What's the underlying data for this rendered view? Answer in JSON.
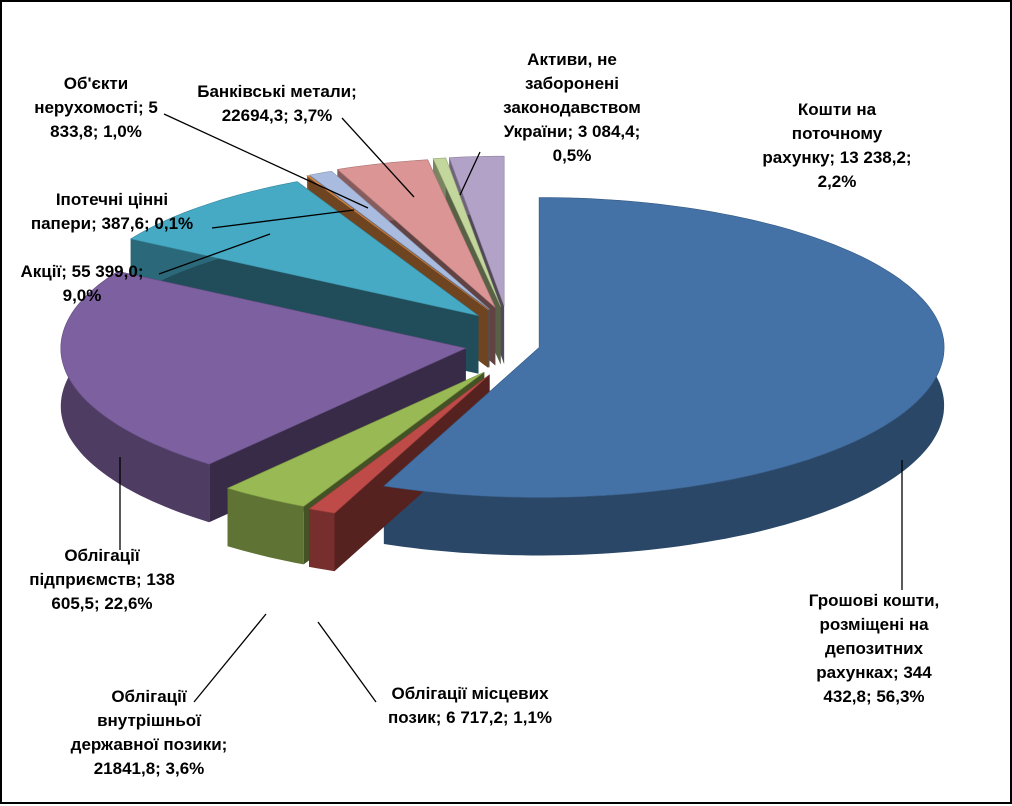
{
  "chart_data": {
    "type": "pie",
    "title": "",
    "grid": false,
    "slices": [
      {
        "name": "Грошові кошти, розміщені на депозитних рахунках",
        "value": 344432.8,
        "percent": 56.3,
        "color": "#4472A6",
        "label": [
          "Грошові кошти,",
          "розміщені на",
          "депозитних",
          "рахунках; 344",
          "432,8; 56,3%"
        ]
      },
      {
        "name": "Облігації місцевих позик",
        "value": 6717.2,
        "percent": 1.1,
        "color": "#BE4B48",
        "label": [
          "Облігації місцевих",
          "позик; 6 717,2; 1,1%"
        ]
      },
      {
        "name": "Облігації внутрішньої державної позики",
        "value": 21841.8,
        "percent": 3.6,
        "color": "#98B954",
        "label": [
          "Облігації",
          "внутрішньої",
          "державної позики;",
          "21841,8; 3,6%"
        ]
      },
      {
        "name": "Облігації підприємств",
        "value": 138605.5,
        "percent": 22.6,
        "color": "#7D60A0",
        "label": [
          "Облігації",
          "підприємств; 138",
          "605,5; 22,6%"
        ]
      },
      {
        "name": "Акції",
        "value": 55399.0,
        "percent": 9.0,
        "color": "#46AAC5",
        "label": [
          "Акції; 55 399,0;",
          "9,0%"
        ]
      },
      {
        "name": "Іпотечні цінні папери",
        "value": 387.6,
        "percent": 0.1,
        "color": "#F79646",
        "label": [
          "Іпотечні цінні",
          "папери; 387,6; 0,1%"
        ]
      },
      {
        "name": "Об'єкти нерухомості",
        "value": 5833.8,
        "percent": 1.0,
        "color": "#A9BCE0",
        "label": [
          "Об'єкти",
          "нерухомості; 5",
          "833,8; 1,0%"
        ]
      },
      {
        "name": "Банківські метали",
        "value": 22694.3,
        "percent": 3.7,
        "color": "#DA9594",
        "label": [
          "Банківські метали;",
          "22694,3; 3,7%"
        ]
      },
      {
        "name": "Активи, не заборонені законодавством України",
        "value": 3084.4,
        "percent": 0.5,
        "color": "#C3D69B",
        "label": [
          "Активи, не",
          "заборонені",
          "законодавством",
          "України; 3 084,4;",
          "0,5%"
        ]
      },
      {
        "name": "Кошти на поточному рахунку",
        "value": 13238.2,
        "percent": 2.2,
        "color": "#B3A2C7",
        "label": [
          "Кошти на",
          "поточному",
          "рахунку; 13 238,2;",
          "2,2%"
        ]
      }
    ]
  }
}
